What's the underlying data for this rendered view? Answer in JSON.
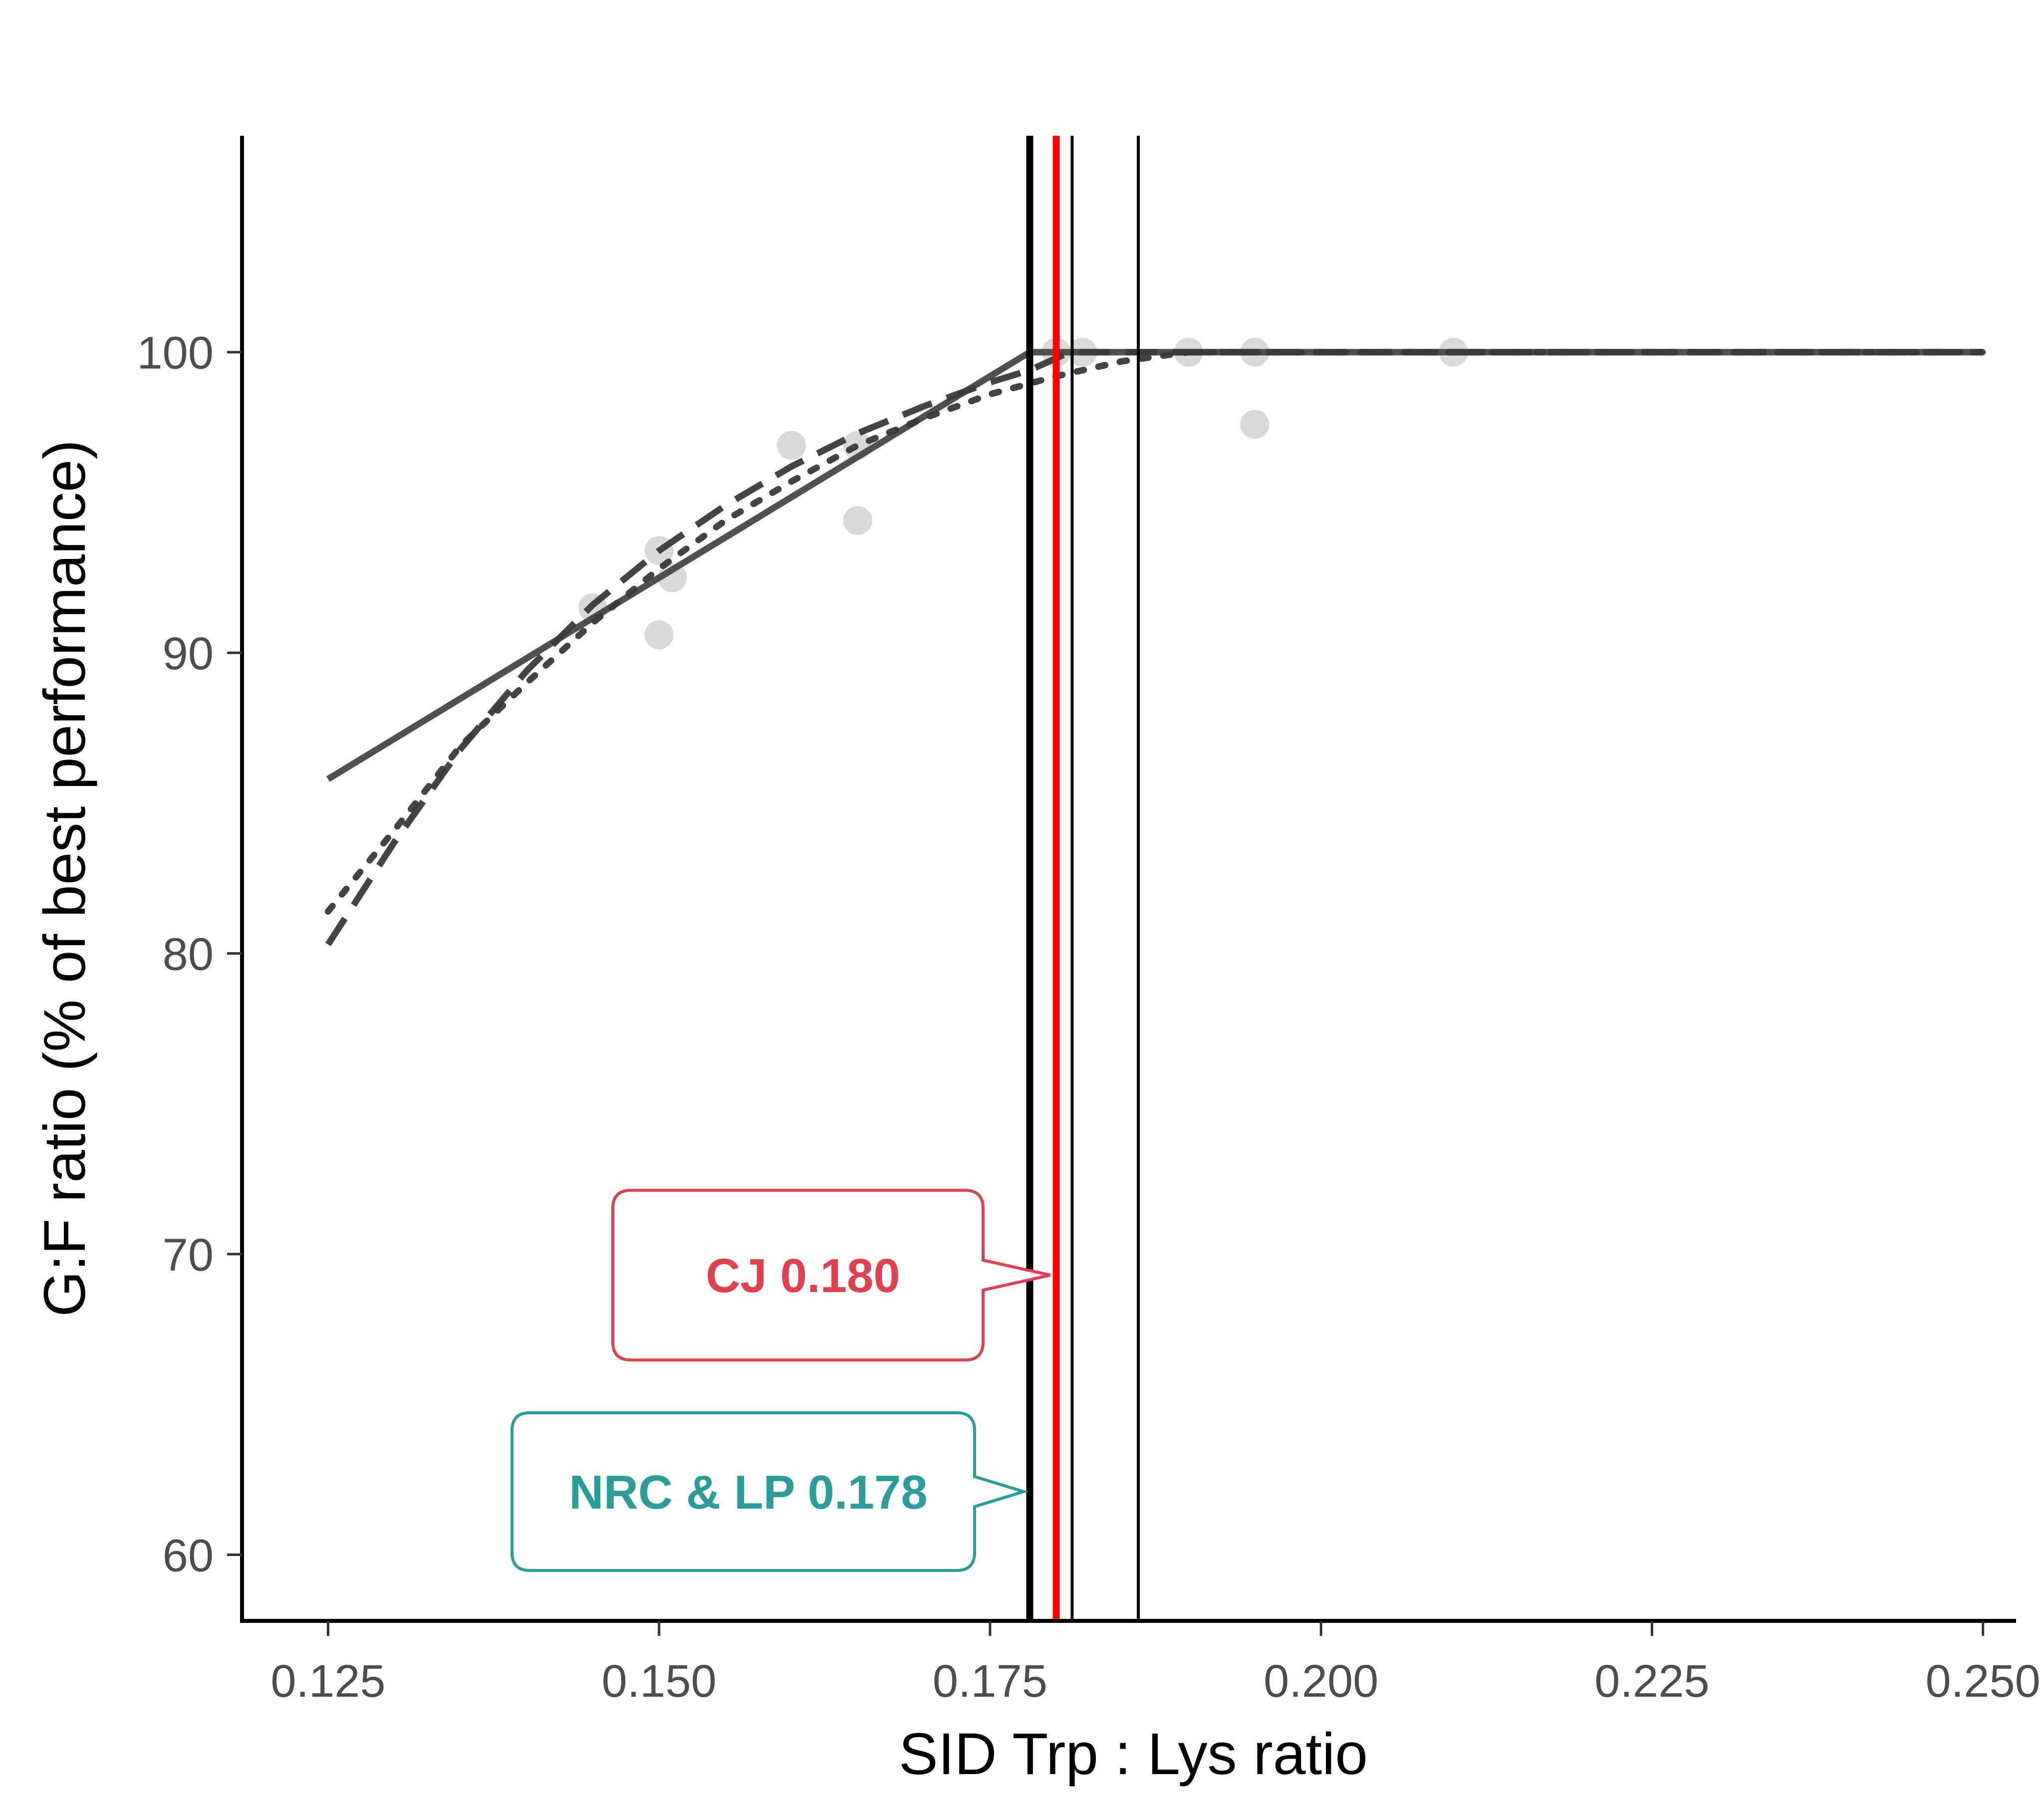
{
  "chart_data": {
    "type": "line",
    "title": "",
    "xlabel": "SID Trp : Lys ratio",
    "ylabel": "G:F ratio (% of best performance)",
    "xlim": [
      0.1185,
      0.2525
    ],
    "ylim": [
      57.8,
      107.2
    ],
    "x_ticks": [
      {
        "value": 0.125,
        "label": "0.125"
      },
      {
        "value": 0.15,
        "label": "0.150"
      },
      {
        "value": 0.175,
        "label": "0.175"
      },
      {
        "value": 0.2,
        "label": "0.200"
      },
      {
        "value": 0.225,
        "label": "0.225"
      },
      {
        "value": 0.25,
        "label": "0.250"
      }
    ],
    "y_ticks": [
      {
        "value": 60,
        "label": "60"
      },
      {
        "value": 70,
        "label": "70"
      },
      {
        "value": 80,
        "label": "80"
      },
      {
        "value": 90,
        "label": "90"
      },
      {
        "value": 100,
        "label": "100"
      }
    ],
    "grid": false,
    "points": {
      "color": "#d9d9d9",
      "data": [
        {
          "x": 0.145,
          "y": 91.5
        },
        {
          "x": 0.15,
          "y": 93.4
        },
        {
          "x": 0.15,
          "y": 90.6
        },
        {
          "x": 0.151,
          "y": 92.5
        },
        {
          "x": 0.16,
          "y": 96.9
        },
        {
          "x": 0.165,
          "y": 94.4
        },
        {
          "x": 0.165,
          "y": 96.9
        },
        {
          "x": 0.18,
          "y": 100
        },
        {
          "x": 0.182,
          "y": 100
        },
        {
          "x": 0.19,
          "y": 100
        },
        {
          "x": 0.195,
          "y": 100
        },
        {
          "x": 0.195,
          "y": 97.6
        },
        {
          "x": 0.21,
          "y": 100
        }
      ]
    },
    "series": [
      {
        "style": "solid",
        "color": "#474747",
        "data": [
          [
            0.125,
            85.8
          ],
          [
            0.178,
            100
          ],
          [
            0.25,
            100
          ]
        ]
      },
      {
        "style": "dashed",
        "color": "#3a3a3a",
        "data": [
          [
            0.125,
            80.3
          ],
          [
            0.13,
            83.7
          ],
          [
            0.135,
            86.8
          ],
          [
            0.14,
            89.4
          ],
          [
            0.145,
            91.6
          ],
          [
            0.15,
            93.4
          ],
          [
            0.155,
            94.9
          ],
          [
            0.16,
            96.2
          ],
          [
            0.165,
            97.3
          ],
          [
            0.17,
            98.2
          ],
          [
            0.175,
            99.0
          ],
          [
            0.178,
            99.4
          ],
          [
            0.181,
            100
          ],
          [
            0.25,
            100
          ]
        ]
      },
      {
        "style": "dotted",
        "color": "#3a3a3a",
        "data": [
          [
            0.125,
            81.4
          ],
          [
            0.13,
            84.1
          ],
          [
            0.135,
            86.9
          ],
          [
            0.14,
            89.0
          ],
          [
            0.145,
            91.0
          ],
          [
            0.15,
            92.8
          ],
          [
            0.155,
            94.4
          ],
          [
            0.16,
            95.7
          ],
          [
            0.165,
            96.9
          ],
          [
            0.17,
            97.8
          ],
          [
            0.175,
            98.6
          ],
          [
            0.18,
            99.2
          ],
          [
            0.185,
            99.7
          ],
          [
            0.19,
            100
          ],
          [
            0.25,
            100
          ]
        ]
      }
    ],
    "vlines": [
      {
        "x": 0.178,
        "color": "#000000",
        "weight": "thick"
      },
      {
        "x": 0.18,
        "color": "#ff0000",
        "weight": "thick"
      },
      {
        "x": 0.1812,
        "color": "#000000",
        "weight": "thin"
      },
      {
        "x": 0.1862,
        "color": "#000000",
        "weight": "thin"
      }
    ],
    "annotations": [
      {
        "text": "CJ 0.180",
        "color": "#e0404f",
        "target_x": 0.18,
        "target_y": 69.3
      },
      {
        "text": "NRC & LP 0.178",
        "color": "#2b9e9c",
        "target_x": 0.178,
        "target_y": 62.1
      }
    ]
  }
}
